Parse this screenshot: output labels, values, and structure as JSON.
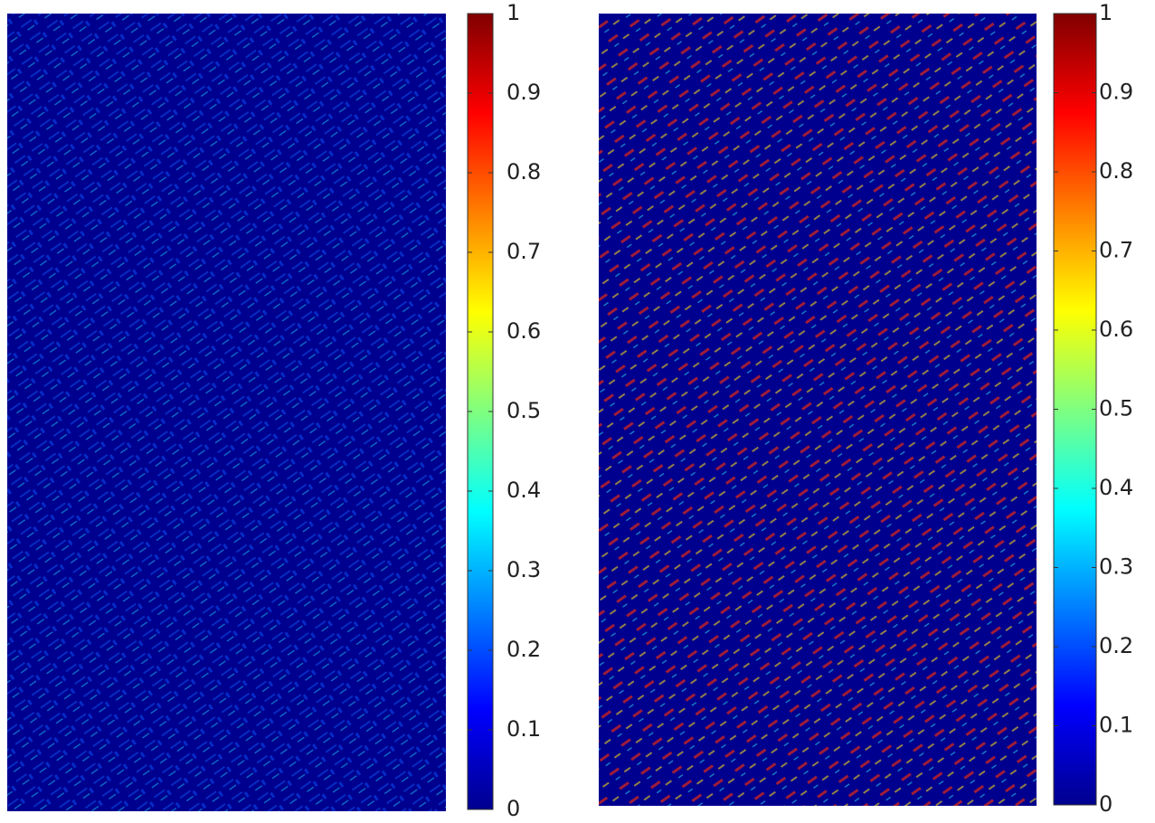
{
  "chart_data": [
    {
      "type": "heatmap",
      "colormap": "jet",
      "clim": [
        0,
        1
      ],
      "cticks": [
        0,
        0.1,
        0.2,
        0.3,
        0.4,
        0.5,
        0.6,
        0.7,
        0.8,
        0.9,
        1
      ]
    },
    {
      "type": "heatmap",
      "colormap": "jet",
      "clim": [
        0,
        1
      ],
      "cticks": [
        0,
        0.1,
        0.2,
        0.3,
        0.4,
        0.5,
        0.6,
        0.7,
        0.8,
        0.9,
        1
      ]
    }
  ]
}
